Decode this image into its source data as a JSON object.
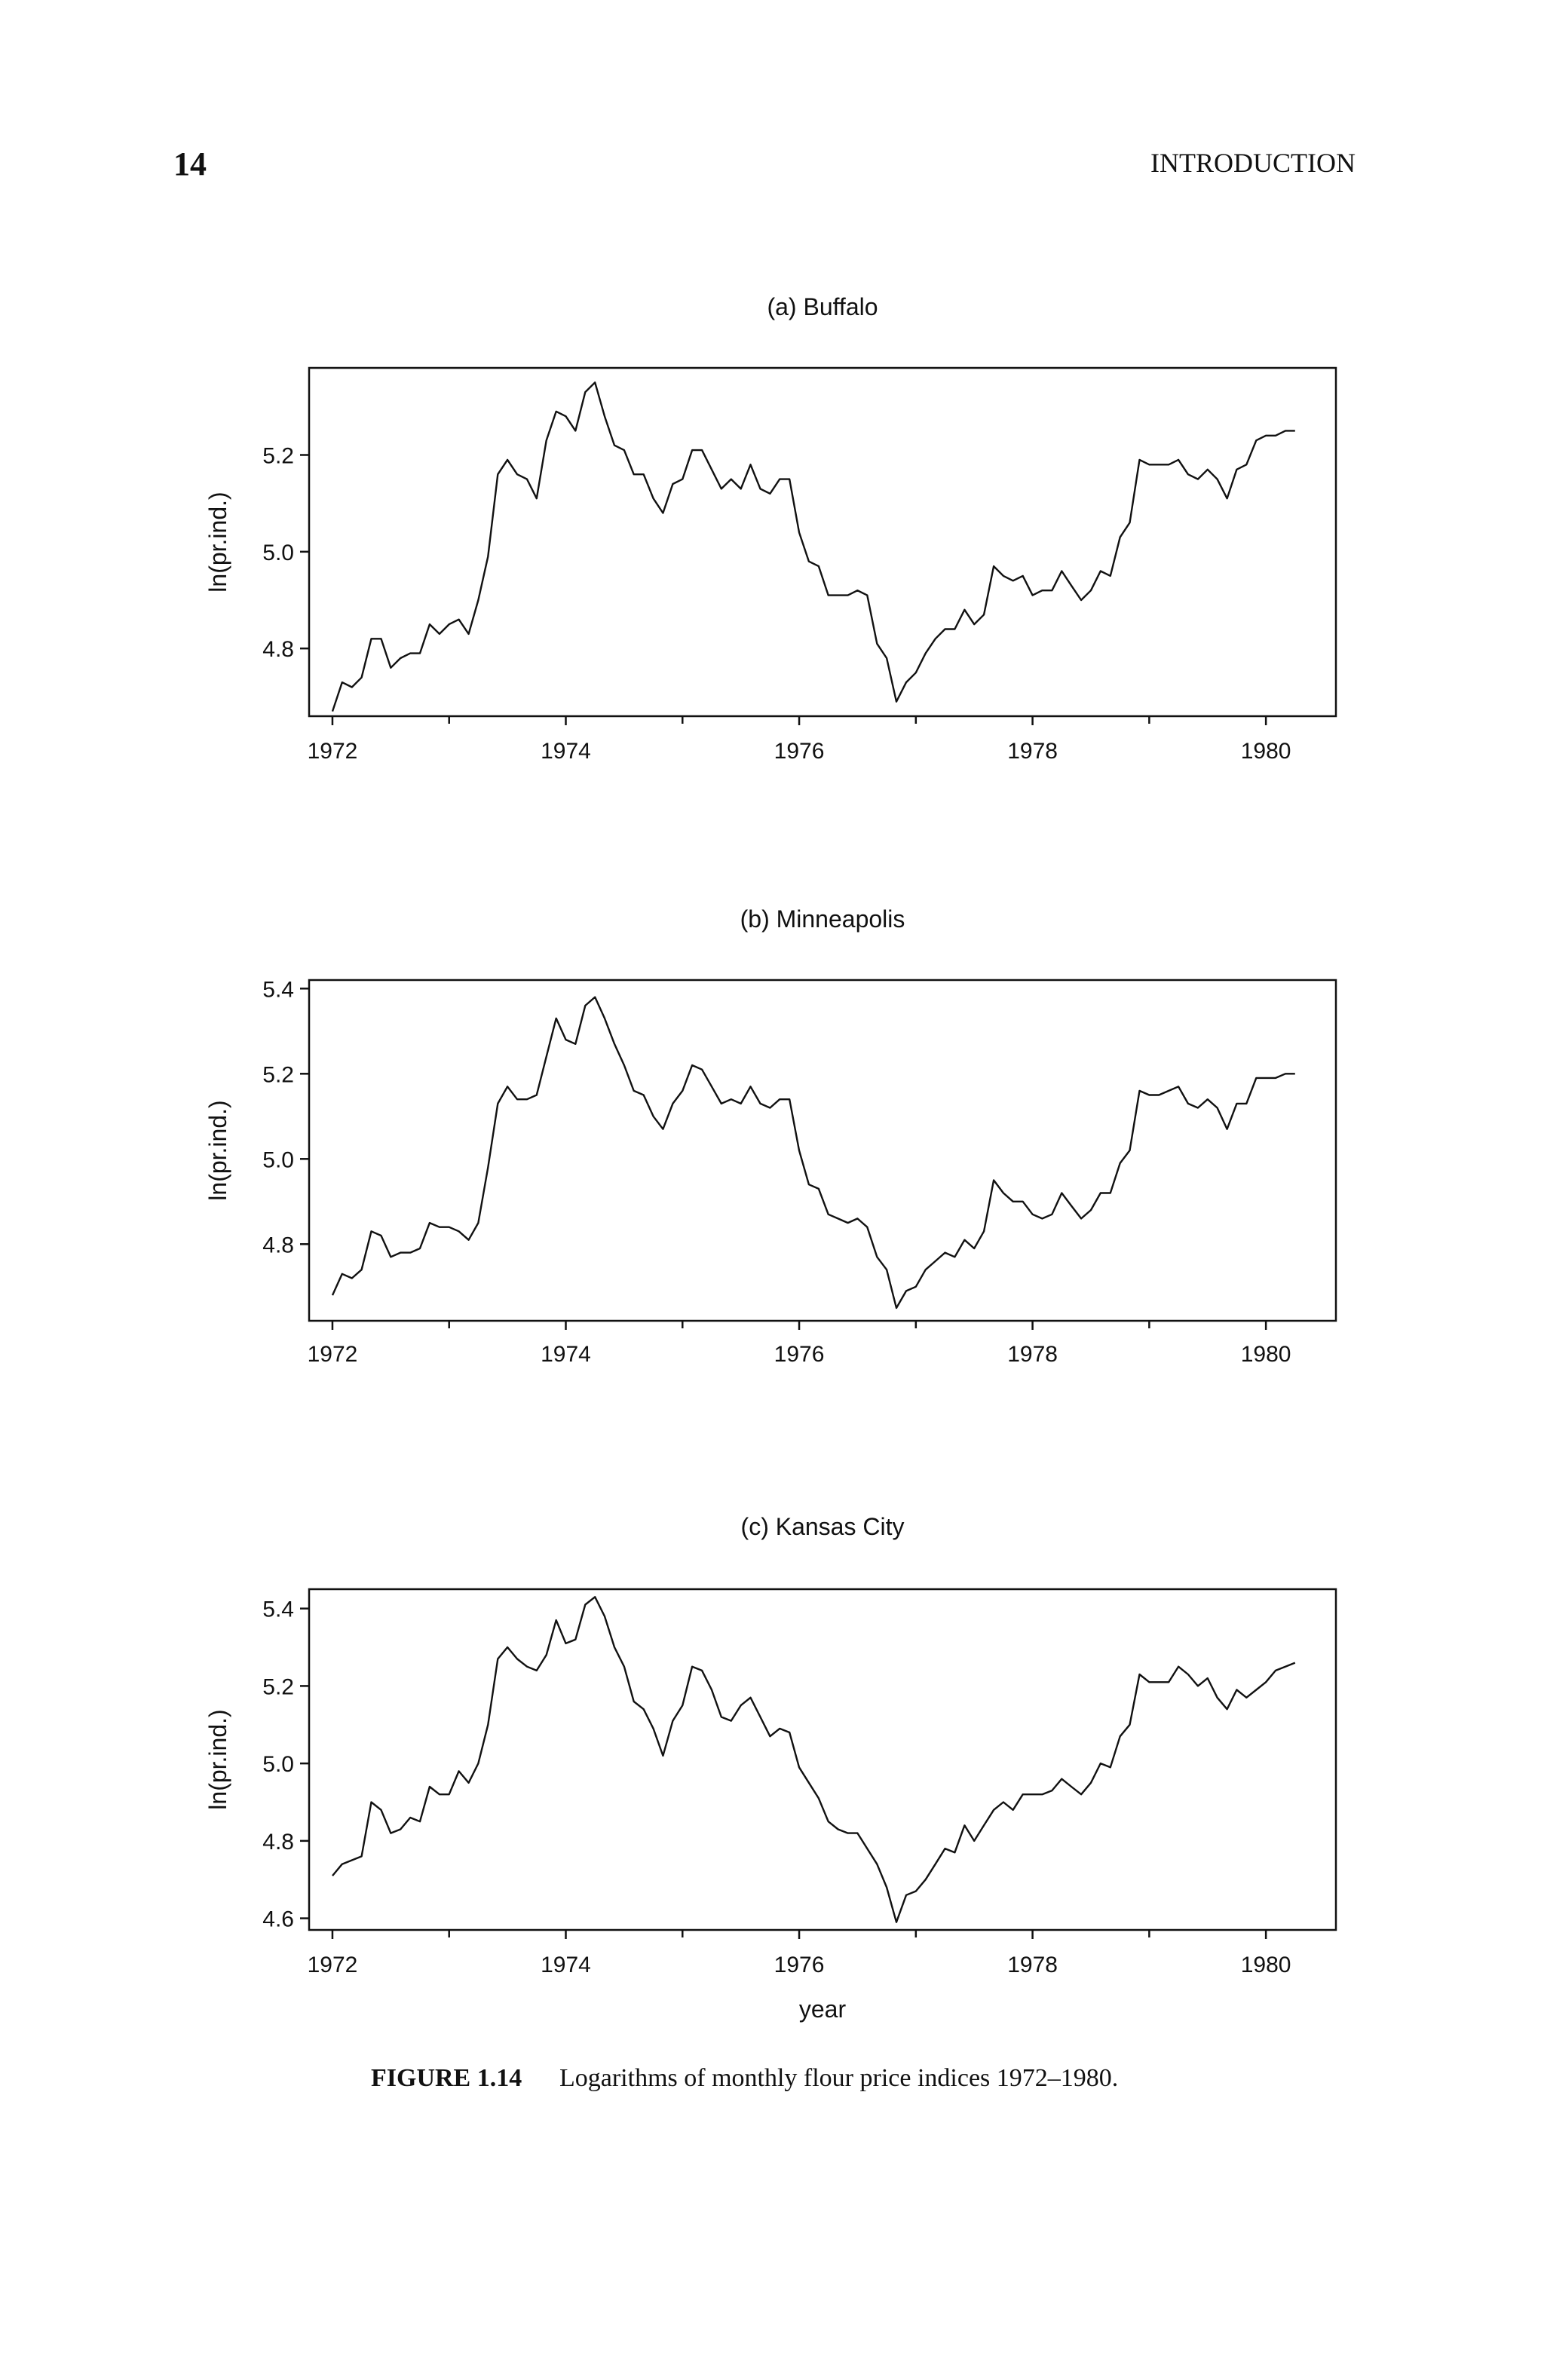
{
  "page": {
    "number": "14",
    "running_head": "INTRODUCTION"
  },
  "caption": {
    "label": "FIGURE 1.14",
    "text": "Logarithms of monthly flour price indices 1972–1980."
  },
  "chart_data": [
    {
      "type": "line",
      "title": "(a) Buffalo",
      "xlabel": "",
      "ylabel": "ln(pr.ind.)",
      "xlim": [
        1971.8,
        1980.6
      ],
      "ylim": [
        4.66,
        5.38
      ],
      "xticks": [
        1972,
        1974,
        1976,
        1978,
        1980
      ],
      "xtick_labels": [
        "1972",
        "1974",
        "1976",
        "1978",
        "1980"
      ],
      "yticks": [
        4.8,
        5.0,
        5.2
      ],
      "ytick_labels": [
        "4.8",
        "5.0",
        "5.2"
      ],
      "grid": false,
      "x": [
        1972.0,
        1972.083,
        1972.167,
        1972.25,
        1972.333,
        1972.417,
        1972.5,
        1972.583,
        1972.667,
        1972.75,
        1972.833,
        1972.917,
        1973.0,
        1973.083,
        1973.167,
        1973.25,
        1973.333,
        1973.417,
        1973.5,
        1973.583,
        1973.667,
        1973.75,
        1973.833,
        1973.917,
        1974.0,
        1974.083,
        1974.167,
        1974.25,
        1974.333,
        1974.417,
        1974.5,
        1974.583,
        1974.667,
        1974.75,
        1974.833,
        1974.917,
        1975.0,
        1975.083,
        1975.167,
        1975.25,
        1975.333,
        1975.417,
        1975.5,
        1975.583,
        1975.667,
        1975.75,
        1975.833,
        1975.917,
        1976.0,
        1976.083,
        1976.167,
        1976.25,
        1976.333,
        1976.417,
        1976.5,
        1976.583,
        1976.667,
        1976.75,
        1976.833,
        1976.917,
        1977.0,
        1977.083,
        1977.167,
        1977.25,
        1977.333,
        1977.417,
        1977.5,
        1977.583,
        1977.667,
        1977.75,
        1977.833,
        1977.917,
        1978.0,
        1978.083,
        1978.167,
        1978.25,
        1978.333,
        1978.417,
        1978.5,
        1978.583,
        1978.667,
        1978.75,
        1978.833,
        1978.917,
        1979.0,
        1979.083,
        1979.167,
        1979.25,
        1979.333,
        1979.417,
        1979.5,
        1979.583,
        1979.667,
        1979.75,
        1979.833,
        1979.917,
        1980.0,
        1980.083,
        1980.167,
        1980.25
      ],
      "y": [
        4.67,
        4.73,
        4.72,
        4.74,
        4.82,
        4.82,
        4.76,
        4.78,
        4.79,
        4.79,
        4.85,
        4.83,
        4.85,
        4.86,
        4.83,
        4.9,
        4.99,
        5.16,
        5.19,
        5.16,
        5.15,
        5.11,
        5.23,
        5.29,
        5.28,
        5.25,
        5.33,
        5.35,
        5.28,
        5.22,
        5.21,
        5.16,
        5.16,
        5.11,
        5.08,
        5.14,
        5.15,
        5.21,
        5.21,
        5.17,
        5.13,
        5.15,
        5.13,
        5.18,
        5.13,
        5.12,
        5.15,
        5.15,
        5.04,
        4.98,
        4.97,
        4.91,
        4.91,
        4.91,
        4.92,
        4.91,
        4.81,
        4.78,
        4.69,
        4.73,
        4.75,
        4.79,
        4.82,
        4.84,
        4.84,
        4.88,
        4.85,
        4.87,
        4.97,
        4.95,
        4.94,
        4.95,
        4.91,
        4.92,
        4.92,
        4.96,
        4.93,
        4.9,
        4.92,
        4.96,
        4.95,
        5.03,
        5.06,
        5.19,
        5.18,
        5.18,
        5.18,
        5.19,
        5.16,
        5.15,
        5.17,
        5.15,
        5.11,
        5.17,
        5.18,
        5.23,
        5.24,
        5.24,
        5.25,
        5.25
      ]
    },
    {
      "type": "line",
      "title": "(b) Minneapolis",
      "xlabel": "",
      "ylabel": "ln(pr.ind.)",
      "xlim": [
        1971.8,
        1980.6
      ],
      "ylim": [
        4.62,
        5.42
      ],
      "xticks": [
        1972,
        1974,
        1976,
        1978,
        1980
      ],
      "xtick_labels": [
        "1972",
        "1974",
        "1976",
        "1978",
        "1980"
      ],
      "yticks": [
        4.8,
        5.0,
        5.2,
        5.4
      ],
      "ytick_labels": [
        "4.8",
        "5.0",
        "5.2",
        "5.4"
      ],
      "grid": false,
      "x": [
        1972.0,
        1972.083,
        1972.167,
        1972.25,
        1972.333,
        1972.417,
        1972.5,
        1972.583,
        1972.667,
        1972.75,
        1972.833,
        1972.917,
        1973.0,
        1973.083,
        1973.167,
        1973.25,
        1973.333,
        1973.417,
        1973.5,
        1973.583,
        1973.667,
        1973.75,
        1973.833,
        1973.917,
        1974.0,
        1974.083,
        1974.167,
        1974.25,
        1974.333,
        1974.417,
        1974.5,
        1974.583,
        1974.667,
        1974.75,
        1974.833,
        1974.917,
        1975.0,
        1975.083,
        1975.167,
        1975.25,
        1975.333,
        1975.417,
        1975.5,
        1975.583,
        1975.667,
        1975.75,
        1975.833,
        1975.917,
        1976.0,
        1976.083,
        1976.167,
        1976.25,
        1976.333,
        1976.417,
        1976.5,
        1976.583,
        1976.667,
        1976.75,
        1976.833,
        1976.917,
        1977.0,
        1977.083,
        1977.167,
        1977.25,
        1977.333,
        1977.417,
        1977.5,
        1977.583,
        1977.667,
        1977.75,
        1977.833,
        1977.917,
        1978.0,
        1978.083,
        1978.167,
        1978.25,
        1978.333,
        1978.417,
        1978.5,
        1978.583,
        1978.667,
        1978.75,
        1978.833,
        1978.917,
        1979.0,
        1979.083,
        1979.167,
        1979.25,
        1979.333,
        1979.417,
        1979.5,
        1979.583,
        1979.667,
        1979.75,
        1979.833,
        1979.917,
        1980.0,
        1980.083,
        1980.167,
        1980.25
      ],
      "y": [
        4.68,
        4.73,
        4.72,
        4.74,
        4.83,
        4.82,
        4.77,
        4.78,
        4.78,
        4.79,
        4.85,
        4.84,
        4.84,
        4.83,
        4.81,
        4.85,
        4.98,
        5.13,
        5.17,
        5.14,
        5.14,
        5.15,
        5.24,
        5.33,
        5.28,
        5.27,
        5.36,
        5.38,
        5.33,
        5.27,
        5.22,
        5.16,
        5.15,
        5.1,
        5.07,
        5.13,
        5.16,
        5.22,
        5.21,
        5.17,
        5.13,
        5.14,
        5.13,
        5.17,
        5.13,
        5.12,
        5.14,
        5.14,
        5.02,
        4.94,
        4.93,
        4.87,
        4.86,
        4.85,
        4.86,
        4.84,
        4.77,
        4.74,
        4.65,
        4.69,
        4.7,
        4.74,
        4.76,
        4.78,
        4.77,
        4.81,
        4.79,
        4.83,
        4.95,
        4.92,
        4.9,
        4.9,
        4.87,
        4.86,
        4.87,
        4.92,
        4.89,
        4.86,
        4.88,
        4.92,
        4.92,
        4.99,
        5.02,
        5.16,
        5.15,
        5.15,
        5.16,
        5.17,
        5.13,
        5.12,
        5.14,
        5.12,
        5.07,
        5.13,
        5.13,
        5.19,
        5.19,
        5.19,
        5.2,
        5.2
      ]
    },
    {
      "type": "line",
      "title": "(c) Kansas City",
      "xlabel": "year",
      "ylabel": "ln(pr.ind.)",
      "xlim": [
        1971.8,
        1980.6
      ],
      "ylim": [
        4.57,
        5.45
      ],
      "xticks": [
        1972,
        1974,
        1976,
        1978,
        1980
      ],
      "xtick_labels": [
        "1972",
        "1974",
        "1976",
        "1978",
        "1980"
      ],
      "yticks": [
        4.6,
        4.8,
        5.0,
        5.2,
        5.4
      ],
      "ytick_labels": [
        "4.6",
        "4.8",
        "5.0",
        "5.2",
        "5.4"
      ],
      "grid": false,
      "x": [
        1972.0,
        1972.083,
        1972.167,
        1972.25,
        1972.333,
        1972.417,
        1972.5,
        1972.583,
        1972.667,
        1972.75,
        1972.833,
        1972.917,
        1973.0,
        1973.083,
        1973.167,
        1973.25,
        1973.333,
        1973.417,
        1973.5,
        1973.583,
        1973.667,
        1973.75,
        1973.833,
        1973.917,
        1974.0,
        1974.083,
        1974.167,
        1974.25,
        1974.333,
        1974.417,
        1974.5,
        1974.583,
        1974.667,
        1974.75,
        1974.833,
        1974.917,
        1975.0,
        1975.083,
        1975.167,
        1975.25,
        1975.333,
        1975.417,
        1975.5,
        1975.583,
        1975.667,
        1975.75,
        1975.833,
        1975.917,
        1976.0,
        1976.083,
        1976.167,
        1976.25,
        1976.333,
        1976.417,
        1976.5,
        1976.583,
        1976.667,
        1976.75,
        1976.833,
        1976.917,
        1977.0,
        1977.083,
        1977.167,
        1977.25,
        1977.333,
        1977.417,
        1977.5,
        1977.583,
        1977.667,
        1977.75,
        1977.833,
        1977.917,
        1978.0,
        1978.083,
        1978.167,
        1978.25,
        1978.333,
        1978.417,
        1978.5,
        1978.583,
        1978.667,
        1978.75,
        1978.833,
        1978.917,
        1979.0,
        1979.083,
        1979.167,
        1979.25,
        1979.333,
        1979.417,
        1979.5,
        1979.583,
        1979.667,
        1979.75,
        1979.833,
        1979.917,
        1980.0,
        1980.083,
        1980.167,
        1980.25
      ],
      "y": [
        4.71,
        4.74,
        4.75,
        4.76,
        4.9,
        4.88,
        4.82,
        4.83,
        4.86,
        4.85,
        4.94,
        4.92,
        4.92,
        4.98,
        4.95,
        5.0,
        5.1,
        5.27,
        5.3,
        5.27,
        5.25,
        5.24,
        5.28,
        5.37,
        5.31,
        5.32,
        5.41,
        5.43,
        5.38,
        5.3,
        5.25,
        5.16,
        5.14,
        5.09,
        5.02,
        5.11,
        5.15,
        5.25,
        5.24,
        5.19,
        5.12,
        5.11,
        5.15,
        5.17,
        5.12,
        5.07,
        5.09,
        5.08,
        4.99,
        4.95,
        4.91,
        4.85,
        4.83,
        4.82,
        4.82,
        4.78,
        4.74,
        4.68,
        4.59,
        4.66,
        4.67,
        4.7,
        4.74,
        4.78,
        4.77,
        4.84,
        4.8,
        4.84,
        4.88,
        4.9,
        4.88,
        4.92,
        4.92,
        4.92,
        4.93,
        4.96,
        4.94,
        4.92,
        4.95,
        5.0,
        4.99,
        5.07,
        5.1,
        5.23,
        5.21,
        5.21,
        5.21,
        5.25,
        5.23,
        5.2,
        5.22,
        5.17,
        5.14,
        5.19,
        5.17,
        5.19,
        5.21,
        5.24,
        5.25,
        5.26
      ]
    }
  ]
}
